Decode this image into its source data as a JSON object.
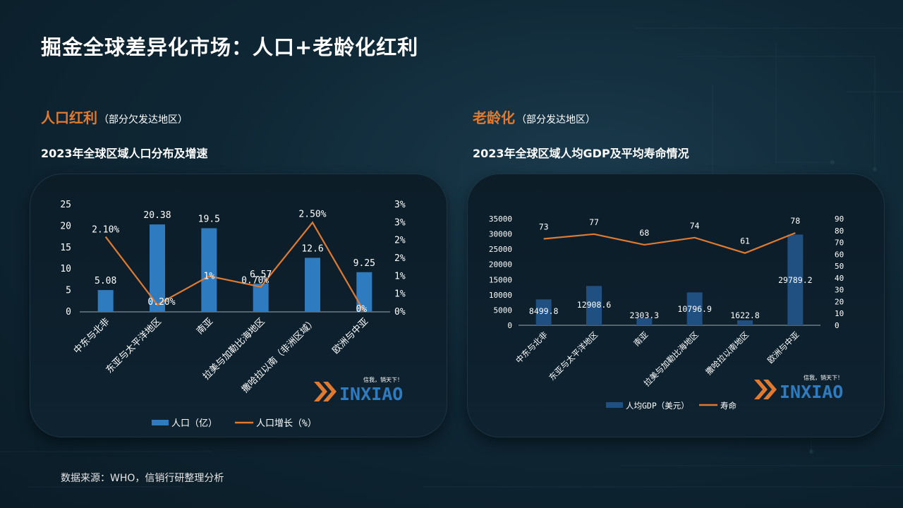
{
  "page": {
    "title": "掘金全球差异化市场：人口+老龄化红利",
    "source": "数据来源：WHO，信销行研整理分析"
  },
  "left": {
    "section_name": "人口红利",
    "section_sub": "（部分欠发达地区）",
    "chart_title": "2023年全球区域人口分布及增速"
  },
  "right": {
    "section_name": "老龄化",
    "section_sub": "（部分发达地区）",
    "chart_title": "2023年全球区域人均GDP及平均寿命情况"
  },
  "logo": {
    "tagline": "信我，销天下！",
    "wordmark": "INXIAO"
  },
  "colors": {
    "bar": "#2f7bc0",
    "bar_dark": "#204f82",
    "line": "#e07a31",
    "accent": "#e07a31"
  },
  "chart_data": [
    {
      "type": "bar+line",
      "categories": [
        "中东与北非",
        "东亚与太平洋地区",
        "南亚",
        "拉美与加勒比海地区",
        "撒哈拉以南（非洲区域）",
        "欧洲与中亚"
      ],
      "series": [
        {
          "name": "人口（亿）",
          "type": "bar",
          "axis": "left",
          "values": [
            5.08,
            20.38,
            19.5,
            6.57,
            12.6,
            9.25
          ],
          "labels": [
            "5.08",
            "20.38",
            "19.5",
            "6.57",
            "12.6",
            "9.25"
          ]
        },
        {
          "name": "人口增长（%）",
          "type": "line",
          "axis": "right",
          "values": [
            2.1,
            0.2,
            1.0,
            0.7,
            2.5,
            0.0
          ],
          "labels": [
            "2.10%",
            "0.20%",
            "1%",
            "0.70%",
            "2.50%",
            "0%"
          ]
        }
      ],
      "y_left": {
        "ticks": [
          "0",
          "5",
          "10",
          "15",
          "20",
          "25"
        ],
        "range": [
          0,
          25
        ]
      },
      "y_right": {
        "ticks": [
          "0%",
          "1%",
          "1%",
          "2%",
          "2%",
          "3%",
          "3%"
        ],
        "range": [
          0,
          3
        ]
      },
      "legend": {
        "position": "bottom"
      },
      "grid": false
    },
    {
      "type": "bar+line",
      "categories": [
        "中东与北非",
        "东亚与太平洋地区",
        "南亚",
        "拉美与加勒比海地区",
        "撒哈拉以南地区",
        "欧洲与中亚"
      ],
      "series": [
        {
          "name": "人均GDP（美元）",
          "type": "bar",
          "axis": "left",
          "values": [
            8499.8,
            12908.6,
            2303.3,
            10796.9,
            1622.8,
            29789.2
          ],
          "labels": [
            "8499.8",
            "12908.6",
            "2303.3",
            "10796.9",
            "1622.8",
            "29789.2"
          ]
        },
        {
          "name": "寿命",
          "type": "line",
          "axis": "right",
          "values": [
            73,
            77,
            68,
            74,
            61,
            78
          ],
          "labels": [
            "73",
            "77",
            "68",
            "74",
            "61",
            "78"
          ]
        }
      ],
      "y_left": {
        "ticks": [
          "0",
          "5000",
          "10000",
          "15000",
          "20000",
          "25000",
          "30000",
          "35000"
        ],
        "range": [
          0,
          35000
        ]
      },
      "y_right": {
        "ticks": [
          "0",
          "10",
          "20",
          "30",
          "40",
          "50",
          "60",
          "70",
          "80",
          "90"
        ],
        "range": [
          0,
          90
        ]
      },
      "legend": {
        "position": "bottom"
      },
      "grid": false
    }
  ]
}
